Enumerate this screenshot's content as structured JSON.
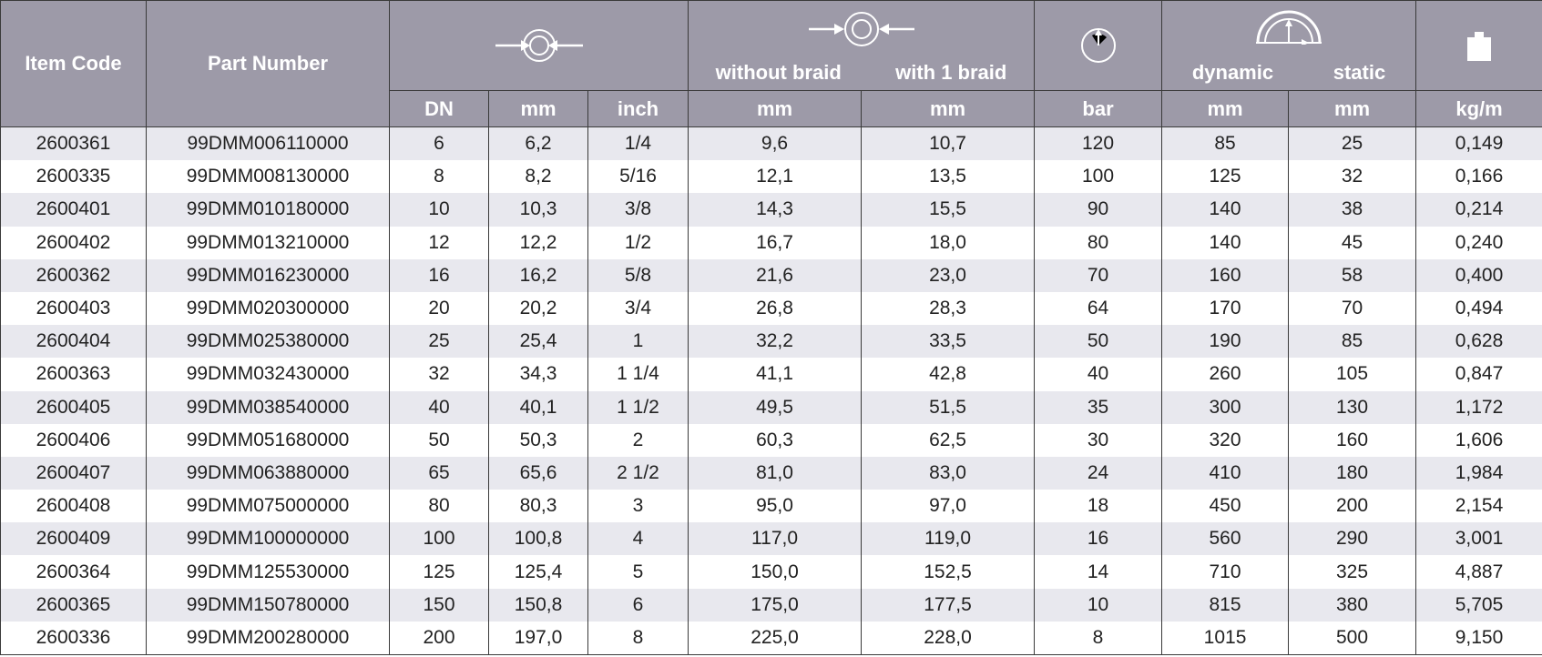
{
  "headers": {
    "item_code": "Item Code",
    "part_number": "Part Number",
    "without_braid": "without braid",
    "with_braid": "with 1 braid",
    "dynamic": "dynamic",
    "static": "static"
  },
  "icons": {
    "inner_diameter": "inner-diameter-icon",
    "outer_diameter": "outer-diameter-icon",
    "pressure": "pressure-gauge-icon",
    "bend_radius": "bend-radius-icon",
    "weight": "weight-icon"
  },
  "units": [
    "DN",
    "mm",
    "inch",
    "mm",
    "mm",
    "bar",
    "mm",
    "mm",
    "kg/m"
  ],
  "rows": [
    [
      "2600361",
      "99DMM006110000",
      "6",
      "6,2",
      "1/4",
      "9,6",
      "10,7",
      "120",
      "85",
      "25",
      "0,149"
    ],
    [
      "2600335",
      "99DMM008130000",
      "8",
      "8,2",
      "5/16",
      "12,1",
      "13,5",
      "100",
      "125",
      "32",
      "0,166"
    ],
    [
      "2600401",
      "99DMM010180000",
      "10",
      "10,3",
      "3/8",
      "14,3",
      "15,5",
      "90",
      "140",
      "38",
      "0,214"
    ],
    [
      "2600402",
      "99DMM013210000",
      "12",
      "12,2",
      "1/2",
      "16,7",
      "18,0",
      "80",
      "140",
      "45",
      "0,240"
    ],
    [
      "2600362",
      "99DMM016230000",
      "16",
      "16,2",
      "5/8",
      "21,6",
      "23,0",
      "70",
      "160",
      "58",
      "0,400"
    ],
    [
      "2600403",
      "99DMM020300000",
      "20",
      "20,2",
      "3/4",
      "26,8",
      "28,3",
      "64",
      "170",
      "70",
      "0,494"
    ],
    [
      "2600404",
      "99DMM025380000",
      "25",
      "25,4",
      "1",
      "32,2",
      "33,5",
      "50",
      "190",
      "85",
      "0,628"
    ],
    [
      "2600363",
      "99DMM032430000",
      "32",
      "34,3",
      "1 1/4",
      "41,1",
      "42,8",
      "40",
      "260",
      "105",
      "0,847"
    ],
    [
      "2600405",
      "99DMM038540000",
      "40",
      "40,1",
      "1 1/2",
      "49,5",
      "51,5",
      "35",
      "300",
      "130",
      "1,172"
    ],
    [
      "2600406",
      "99DMM051680000",
      "50",
      "50,3",
      "2",
      "60,3",
      "62,5",
      "30",
      "320",
      "160",
      "1,606"
    ],
    [
      "2600407",
      "99DMM063880000",
      "65",
      "65,6",
      "2 1/2",
      "81,0",
      "83,0",
      "24",
      "410",
      "180",
      "1,984"
    ],
    [
      "2600408",
      "99DMM075000000",
      "80",
      "80,3",
      "3",
      "95,0",
      "97,0",
      "18",
      "450",
      "200",
      "2,154"
    ],
    [
      "2600409",
      "99DMM100000000",
      "100",
      "100,8",
      "4",
      "117,0",
      "119,0",
      "16",
      "560",
      "290",
      "3,001"
    ],
    [
      "2600364",
      "99DMM125530000",
      "125",
      "125,4",
      "5",
      "150,0",
      "152,5",
      "14",
      "710",
      "325",
      "4,887"
    ],
    [
      "2600365",
      "99DMM150780000",
      "150",
      "150,8",
      "6",
      "175,0",
      "177,5",
      "10",
      "815",
      "380",
      "5,705"
    ],
    [
      "2600336",
      "99DMM200280000",
      "200",
      "197,0",
      "8",
      "225,0",
      "228,0",
      "8",
      "1015",
      "500",
      "9,150"
    ]
  ],
  "colors": {
    "header_bg": "#9d9aa8",
    "row_alt": "#e8e8ee",
    "border": "#3a3a3a"
  }
}
